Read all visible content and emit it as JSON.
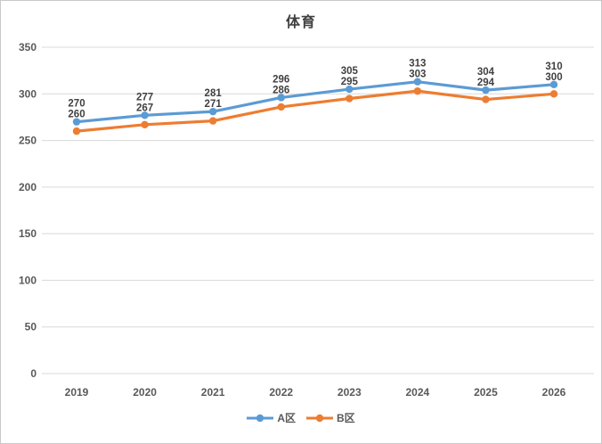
{
  "chart_data": {
    "type": "line",
    "title": "体育",
    "categories": [
      "2019",
      "2020",
      "2021",
      "2022",
      "2023",
      "2024",
      "2025",
      "2026"
    ],
    "series": [
      {
        "name": "A区",
        "color": "#5B9BD5",
        "values": [
          270,
          277,
          281,
          296,
          305,
          313,
          304,
          310
        ]
      },
      {
        "name": "B区",
        "color": "#ED7D31",
        "values": [
          260,
          267,
          271,
          286,
          295,
          303,
          294,
          300
        ]
      }
    ],
    "ylim": [
      0,
      350
    ],
    "yticks": [
      0,
      50,
      100,
      150,
      200,
      250,
      300,
      350
    ],
    "grid": true,
    "data_labels": true,
    "legend_position": "bottom",
    "colors": {
      "gridline": "#d9d9d9",
      "axis_label": "#595959",
      "data_label": "#404040",
      "title": "#404040",
      "figure_border": "#c9c9c9",
      "background": "#ffffff"
    }
  }
}
